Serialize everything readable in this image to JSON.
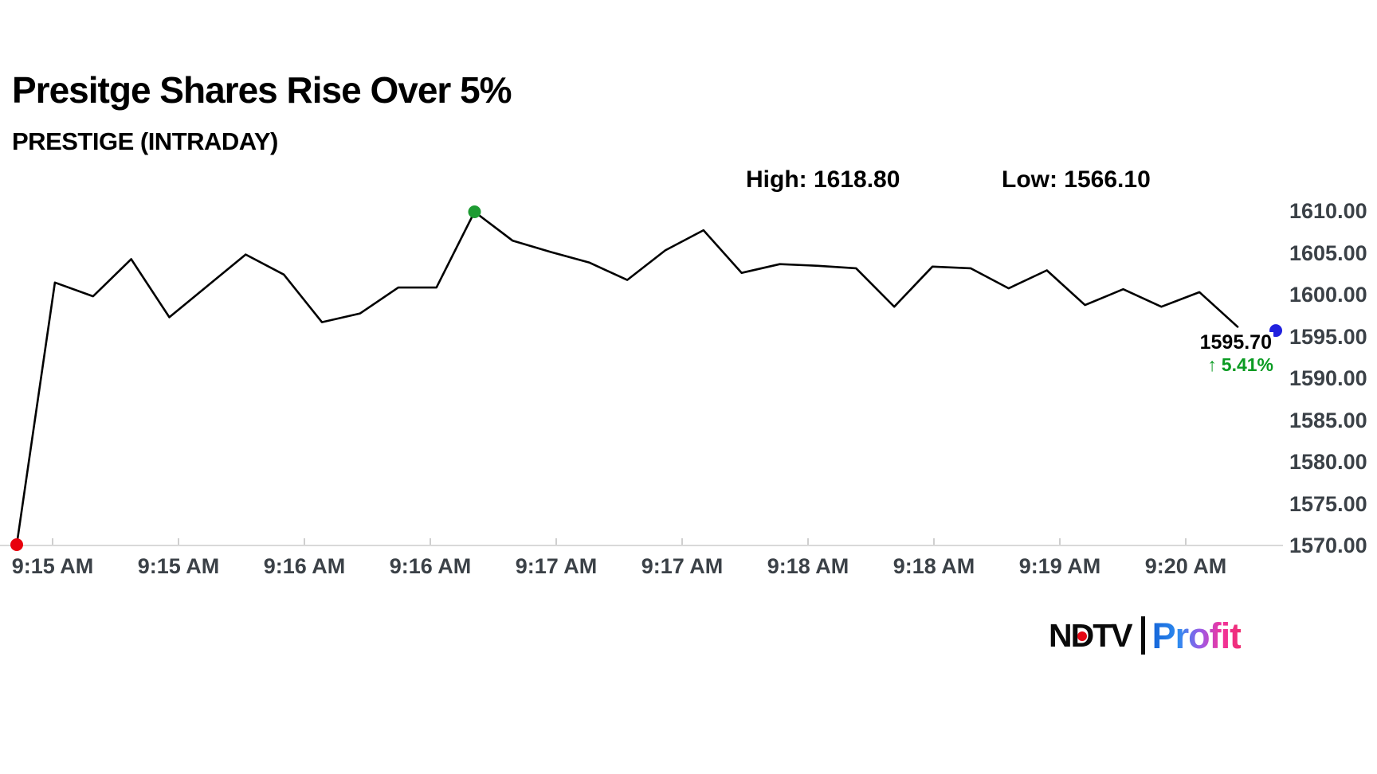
{
  "chart_data": {
    "type": "line",
    "title": "Presitge Shares Rise Over 5%",
    "subtitle": "PRESTIGE (INTRADAY)",
    "grid": false,
    "legend": false,
    "line_color": "#000000",
    "axis_color": "#3b4147",
    "baseline_color": "#d9d9d9",
    "ylim": [
      1566,
      1612
    ],
    "y_tick_labels": [
      "1570.00",
      "1575.00",
      "1580.00",
      "1585.00",
      "1590.00",
      "1595.00",
      "1600.00",
      "1605.00",
      "1610.00"
    ],
    "x_tick_labels": [
      "9:15 AM",
      "9:15 AM",
      "9:16 AM",
      "9:16 AM",
      "9:17 AM",
      "9:17 AM",
      "9:18 AM",
      "9:18 AM",
      "9:19 AM",
      "9:20 AM"
    ],
    "series": [
      {
        "name": "PRESTIGE intraday price",
        "values": [
          1570.1,
          1601.45,
          1599.8,
          1604.25,
          1597.3,
          1601.05,
          1604.8,
          1602.4,
          1596.7,
          1597.75,
          1600.85,
          1600.85,
          1609.9,
          1606.45,
          1605.1,
          1603.85,
          1601.75,
          1605.3,
          1607.7,
          1602.6,
          1603.65,
          1603.45,
          1603.15,
          1598.55,
          1603.35,
          1603.15,
          1600.75,
          1602.9,
          1598.75,
          1600.65,
          1598.55,
          1600.3,
          1596.15,
          1595.7
        ]
      }
    ],
    "markers": [
      {
        "index": 0,
        "color": "#e8000d",
        "name": "session-low-dot"
      },
      {
        "index": 12,
        "color": "#1d9b32",
        "name": "session-peak-dot"
      },
      {
        "index": 33,
        "color": "#2121de",
        "name": "last-price-dot"
      }
    ],
    "annotations": {
      "high": "High: 1618.80",
      "low": "Low: 1566.10"
    },
    "day_high": 1618.8,
    "day_low": 1566.1,
    "last_price": {
      "value": "1595.70",
      "arrow": "↑",
      "change_pct": "5.41%",
      "color": "#0a9b22"
    }
  },
  "branding": {
    "ndtv": "NDTV",
    "profit": "Profit",
    "ball_color": "#e30613"
  }
}
